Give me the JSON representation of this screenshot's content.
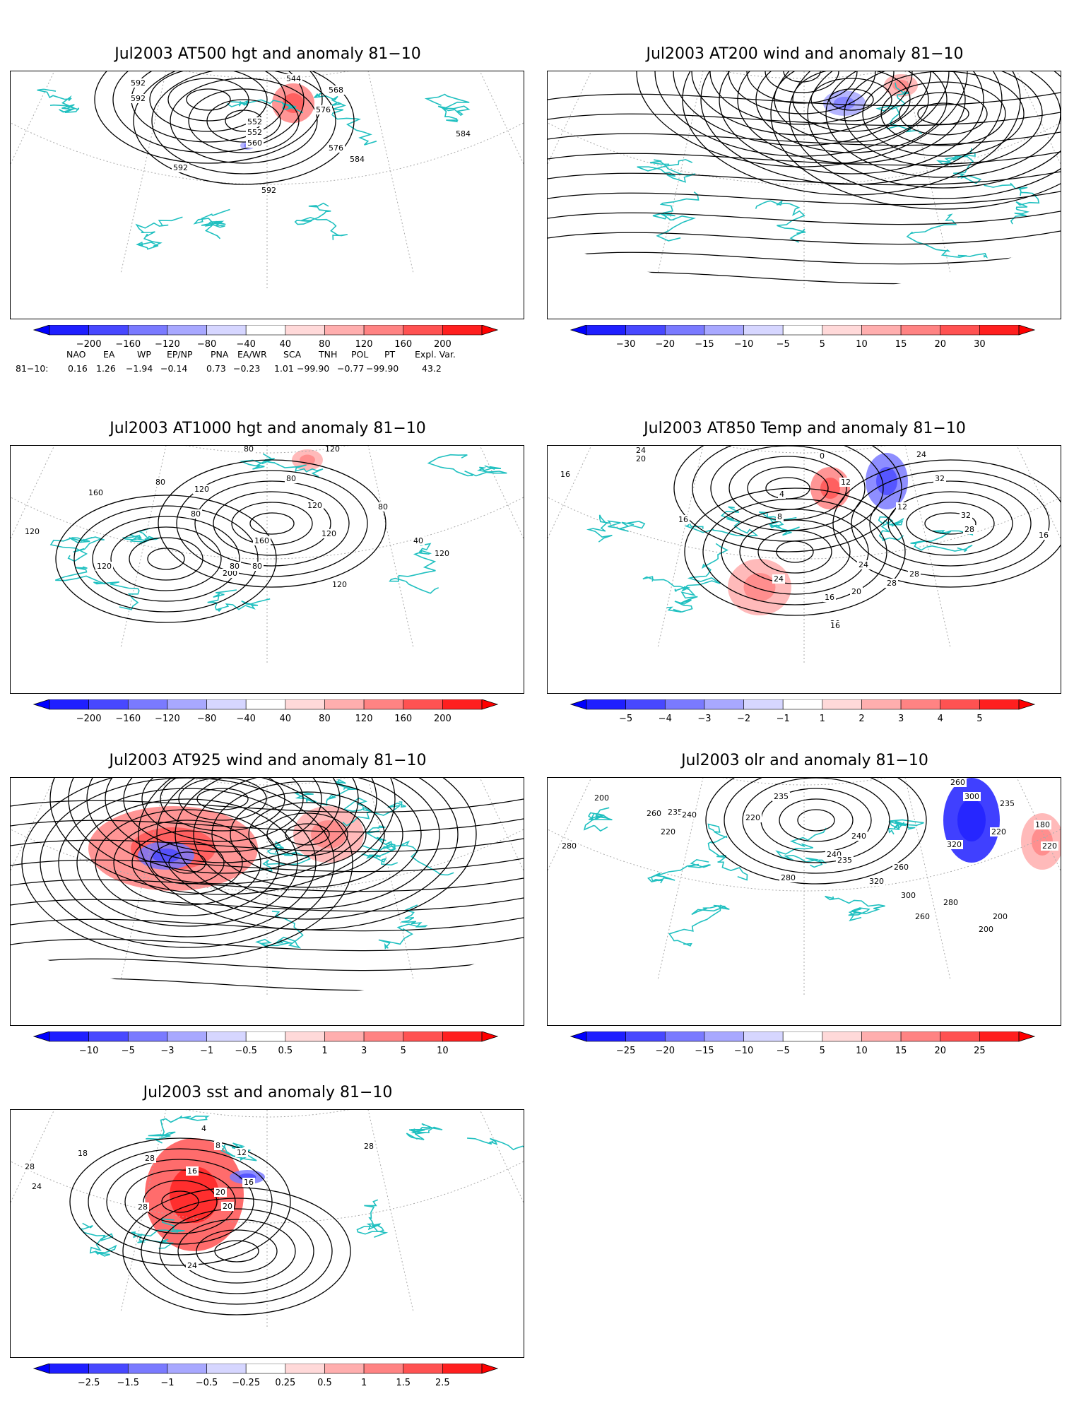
{
  "colors": {
    "blue_scale": [
      "#1f1fff",
      "#4848ff",
      "#7a7aff",
      "#a8a8ff",
      "#d6d6ff"
    ],
    "red_scale": [
      "#ffd9d9",
      "#ffaeae",
      "#ff8383",
      "#ff5252",
      "#ff1f1f"
    ],
    "coast": "#20c0c0",
    "contour": "#000000",
    "grid": "#aaaaaa"
  },
  "panels": [
    {
      "title": "Jul2003 AT500 hgt and anomaly 81−10",
      "kind": "contour",
      "colorbar": [
        "−200",
        "−160",
        "−120",
        "−80",
        "−40",
        "40",
        "80",
        "120",
        "160",
        "200"
      ],
      "contour_labels": [
        "592",
        "544",
        "552",
        "552",
        "568",
        "576",
        "592",
        "560",
        "576",
        "584",
        "584",
        "592",
        "592"
      ],
      "anomalies": [
        {
          "sign": "pos",
          "level": 2
        },
        {
          "sign": "neg",
          "level": 1
        }
      ]
    },
    {
      "title": "Jul2003 AT200 wind and anomaly 81−10",
      "kind": "stream",
      "colorbar": [
        "−30",
        "−20",
        "−15",
        "−10",
        "−5",
        "5",
        "10",
        "15",
        "20",
        "30"
      ],
      "contour_labels": [],
      "anomalies": [
        {
          "sign": "neg",
          "level": 1
        },
        {
          "sign": "pos",
          "level": 1
        }
      ]
    },
    {
      "title": "Jul2003 AT1000 hgt and anomaly 81−10",
      "kind": "contour",
      "colorbar": [
        "−200",
        "−160",
        "−120",
        "−80",
        "−40",
        "40",
        "80",
        "120",
        "160",
        "200"
      ],
      "contour_labels": [
        "80",
        "120",
        "80",
        "120",
        "160",
        "80",
        "80",
        "80",
        "120",
        "160",
        "200",
        "120",
        "40",
        "120",
        "80",
        "120",
        "80",
        "120",
        "120"
      ],
      "anomalies": [
        {
          "sign": "pos",
          "level": 1
        }
      ]
    },
    {
      "title": "Jul2003 AT850 Temp and anomaly 81−10",
      "kind": "contour",
      "colorbar": [
        "−5",
        "−4",
        "−3",
        "−2",
        "−1",
        "1",
        "2",
        "3",
        "4",
        "5"
      ],
      "contour_labels": [
        "24",
        "20",
        "16",
        "0",
        "4",
        "12",
        "8",
        "16",
        "12",
        "32",
        "24",
        "32",
        "28",
        "24",
        "28",
        "20",
        "16",
        "28",
        "24",
        "20",
        "16",
        "16"
      ],
      "anomalies": [
        {
          "sign": "pos",
          "level": 2
        },
        {
          "sign": "neg",
          "level": 2
        },
        {
          "sign": "pos",
          "level": 1
        }
      ]
    },
    {
      "title": "Jul2003 AT925 wind and anomaly 81−10",
      "kind": "stream",
      "colorbar": [
        "−10",
        "−5",
        "−3",
        "−1",
        "−0.5",
        "0.5",
        "1",
        "3",
        "5",
        "10"
      ],
      "contour_labels": [],
      "anomalies": [
        {
          "sign": "pos",
          "level": 2
        },
        {
          "sign": "neg",
          "level": 2
        },
        {
          "sign": "pos",
          "level": 1
        }
      ]
    },
    {
      "title": "Jul2003 olr and anomaly 81−10",
      "kind": "contour",
      "colorbar": [
        "−25",
        "−20",
        "−15",
        "−10",
        "−5",
        "5",
        "10",
        "15",
        "20",
        "25"
      ],
      "contour_labels": [
        "280",
        "200",
        "260",
        "220",
        "235",
        "240",
        "220",
        "235",
        "240",
        "260",
        "280",
        "300",
        "320",
        "240",
        "235",
        "260",
        "280",
        "320",
        "300",
        "260",
        "220",
        "235",
        "220",
        "200",
        "180",
        "200"
      ],
      "anomalies": [
        {
          "sign": "neg",
          "level": 4
        },
        {
          "sign": "pos",
          "level": 1
        }
      ]
    },
    {
      "title": "Jul2003 sst and anomaly 81−10",
      "kind": "contour",
      "colorbar": [
        "−2.5",
        "−1.5",
        "−1",
        "−0.5",
        "−0.25",
        "0.25",
        "0.5",
        "1",
        "1.5",
        "2.5"
      ],
      "contour_labels": [
        "28",
        "24",
        "18",
        "28",
        "4",
        "8",
        "12",
        "16",
        "16",
        "20",
        "20",
        "24",
        "28",
        "28"
      ],
      "anomalies": [
        {
          "sign": "pos",
          "level": 3
        },
        {
          "sign": "neg",
          "level": 2
        }
      ]
    }
  ],
  "teleconnection": {
    "headers": [
      "NAO",
      "EA",
      "WP",
      "EP/NP",
      "PNA",
      "EA/WR",
      "SCA",
      "TNH",
      "POL",
      "PT",
      "Expl. Var."
    ],
    "row_label": "81−10:",
    "values": [
      "0.16",
      "1.26",
      "−1.94",
      "−0.14",
      "0.73",
      "−0.23",
      "1.01",
      "−99.90",
      "−0.77",
      "−99.90",
      "43.2"
    ]
  }
}
